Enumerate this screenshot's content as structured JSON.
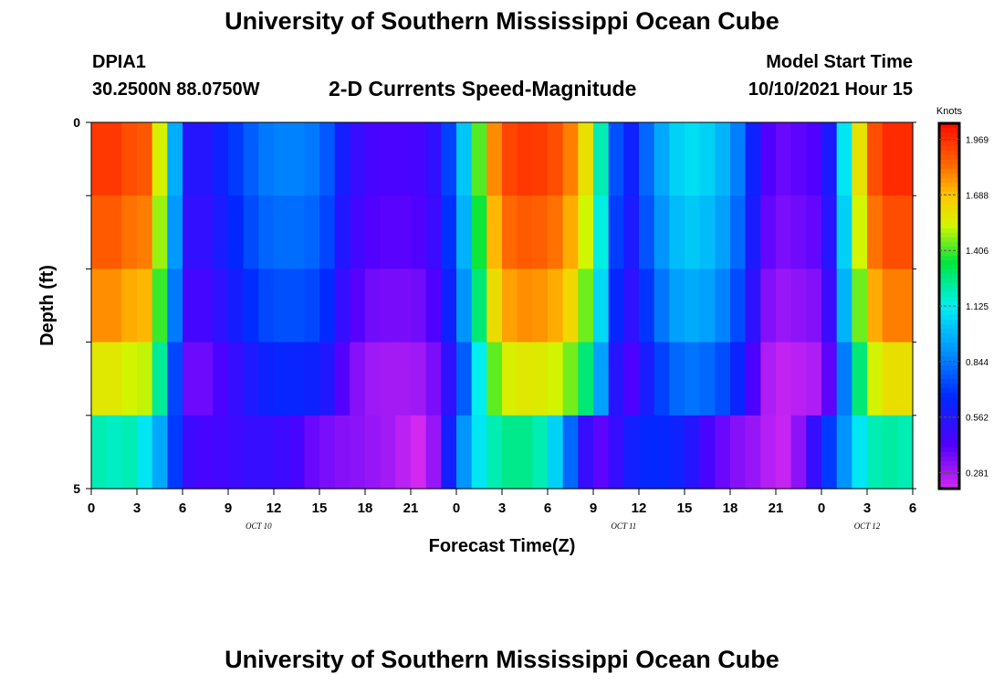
{
  "header": {
    "title": "University of Southern Mississippi Ocean Cube",
    "station_id": "DPIA1",
    "station_coords": "30.2500N  88.0750W",
    "plot_title": "2-D Currents Speed-Magnitude",
    "model_start_label": "Model Start Time",
    "model_start_value": "10/10/2021 Hour 15"
  },
  "footer": {
    "title": "University of Southern Mississippi Ocean Cube"
  },
  "chart_data": {
    "type": "heatmap",
    "title": "2-D Currents Speed-Magnitude",
    "xlabel": "Forecast Time(Z)",
    "ylabel": "Depth (ft)",
    "ylim": [
      0,
      5
    ],
    "y_ticks": [
      "0",
      "5"
    ],
    "x_tick_labels": [
      "0",
      "3",
      "6",
      "9",
      "12",
      "15",
      "18",
      "21",
      "0",
      "3",
      "6",
      "9",
      "12",
      "15",
      "18",
      "21",
      "0",
      "3",
      "6"
    ],
    "date_labels": [
      {
        "label": "OCT 10",
        "hour_index": 11
      },
      {
        "label": "OCT 11",
        "hour_index": 35
      },
      {
        "label": "OCT 12",
        "hour_index": 51
      }
    ],
    "hours_total": 54,
    "depth_layers": 5,
    "colorbar": {
      "label": "Knots",
      "ticks": [
        "1.969",
        "1.688",
        "1.406",
        "1.125",
        "0.844",
        "0.562",
        "0.281"
      ],
      "min": 0.2,
      "max": 2.05
    },
    "surface_profile_knots": [
      1.95,
      1.95,
      1.9,
      1.88,
      1.55,
      0.96,
      0.55,
      0.55,
      0.62,
      0.7,
      0.78,
      0.84,
      0.86,
      0.86,
      0.84,
      0.77,
      0.6,
      0.5,
      0.45,
      0.44,
      0.44,
      0.45,
      0.52,
      0.72,
      1.02,
      1.42,
      1.78,
      1.92,
      1.95,
      1.94,
      1.9,
      1.8,
      1.6,
      1.2,
      0.75,
      0.62,
      0.8,
      0.95,
      1.05,
      1.08,
      1.05,
      0.98,
      0.85,
      0.62,
      0.42,
      0.38,
      0.4,
      0.42,
      0.58,
      1.1,
      1.6,
      1.9,
      1.98,
      1.98,
      1.95
    ],
    "depth_factors": [
      1.0,
      0.97,
      0.94,
      0.86,
      0.75
    ],
    "depth_offsets": [
      0.0,
      -0.02,
      -0.06,
      -0.1,
      -0.22
    ],
    "bottom_row_knots": [
      1.2,
      1.18,
      1.2,
      1.1,
      0.95,
      0.7,
      0.48,
      0.45,
      0.46,
      0.48,
      0.5,
      0.5,
      0.48,
      0.45,
      0.38,
      0.35,
      0.33,
      0.32,
      0.3,
      0.28,
      0.24,
      0.2,
      0.3,
      0.6,
      0.9,
      1.1,
      1.2,
      1.25,
      1.25,
      1.2,
      1.05,
      0.8,
      0.5,
      0.4,
      0.5,
      0.6,
      0.65,
      0.65,
      0.62,
      0.55,
      0.45,
      0.38,
      0.33,
      0.3,
      0.25,
      0.22,
      0.32,
      0.5,
      0.7,
      0.9,
      1.1,
      1.2,
      1.22,
      1.2,
      1.15
    ]
  }
}
